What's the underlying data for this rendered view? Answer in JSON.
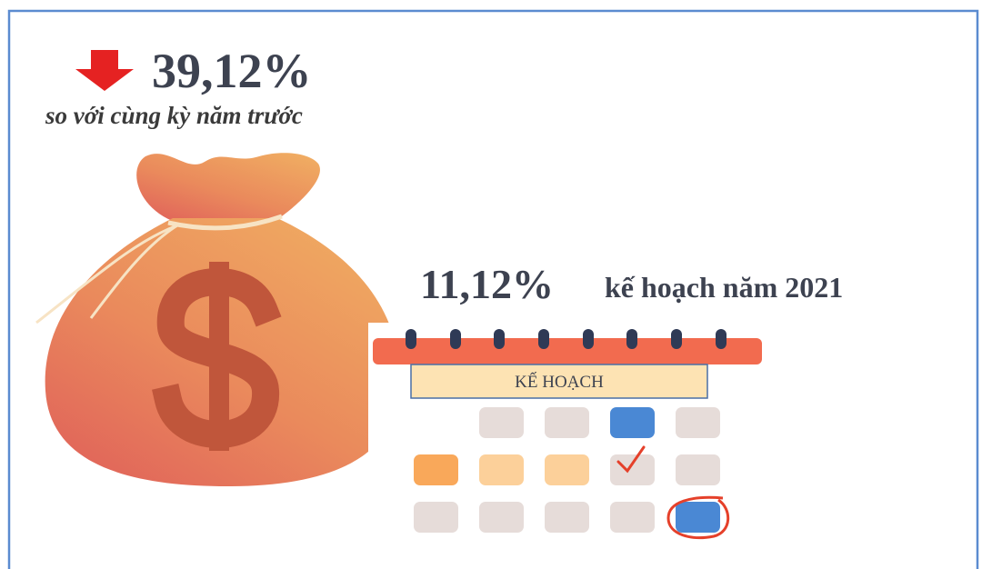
{
  "headline": {
    "value": "39,12%",
    "caption": "so với cùng kỳ năm trước"
  },
  "plan": {
    "value": "11,12%",
    "caption": "kế hoạch năm 2021"
  },
  "calendar": {
    "label": "KẾ HOẠCH"
  }
}
